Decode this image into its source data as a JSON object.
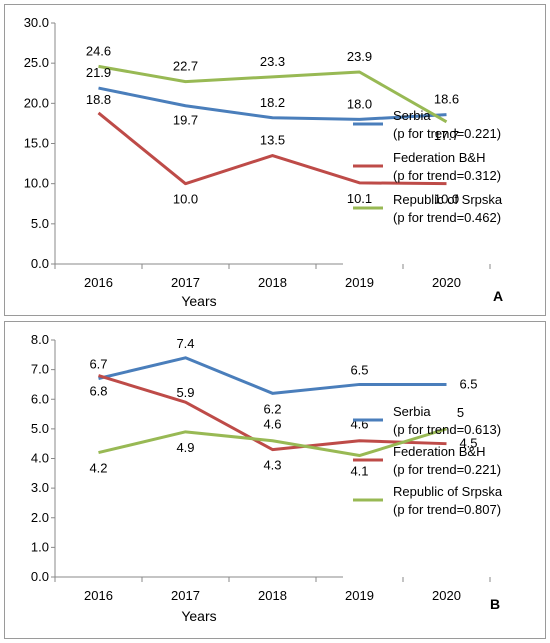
{
  "chart_data": [
    {
      "type": "line",
      "panel_label": "A",
      "xlabel": "Years",
      "categories": [
        "2016",
        "2017",
        "2018",
        "2019",
        "2020"
      ],
      "ylim": [
        0,
        30
      ],
      "yticks": [
        "0.0",
        "5.0",
        "10.0",
        "15.0",
        "20.0",
        "25.0",
        "30.0"
      ],
      "series": [
        {
          "name": "Serbia",
          "trend": "(p for trend=0.221)",
          "color": "#4a7ebb",
          "values": [
            21.9,
            19.7,
            18.2,
            18.0,
            18.6
          ],
          "labels": [
            "21.9",
            "19.7",
            "18.2",
            "18.0",
            "18.6"
          ]
        },
        {
          "name": "Federation B&H",
          "trend": "(p for trend=0.312)",
          "color": "#be4b48",
          "values": [
            18.8,
            10.0,
            13.5,
            10.1,
            10.0
          ],
          "labels": [
            "18.8",
            "10.0",
            "13.5",
            "10.1",
            "10.0"
          ]
        },
        {
          "name": "Republic of Srpska",
          "trend": "(p for trend=0.462)",
          "color": "#98b954",
          "values": [
            24.6,
            22.7,
            23.3,
            23.9,
            17.7
          ],
          "labels": [
            "24.6",
            "22.7",
            "23.3",
            "23.9",
            "17.7"
          ]
        }
      ],
      "legend_position": "right"
    },
    {
      "type": "line",
      "panel_label": "B",
      "xlabel": "Years",
      "categories": [
        "2016",
        "2017",
        "2018",
        "2019",
        "2020"
      ],
      "ylim": [
        0,
        8
      ],
      "yticks": [
        "0.0",
        "1.0",
        "2.0",
        "3.0",
        "4.0",
        "5.0",
        "6.0",
        "7.0",
        "8.0"
      ],
      "series": [
        {
          "name": "Serbia",
          "trend": "(p for trend=0.613)",
          "color": "#4a7ebb",
          "values": [
            6.7,
            7.4,
            6.2,
            6.5,
            6.5
          ],
          "labels": [
            "6.7",
            "7.4",
            "6.2",
            "6.5",
            "6.5"
          ]
        },
        {
          "name": "Federation B&H",
          "trend": "(p for trend=0.221)",
          "color": "#be4b48",
          "values": [
            6.8,
            5.9,
            4.3,
            4.6,
            4.5
          ],
          "labels": [
            "6.8",
            "5.9",
            "4.3",
            "4.6",
            "4.5"
          ]
        },
        {
          "name": "Republic of Srpska",
          "trend": "(p for trend=0.807)",
          "color": "#98b954",
          "values": [
            4.2,
            4.9,
            4.6,
            4.1,
            5.0
          ],
          "labels": [
            "4.2",
            "4.9",
            "4.6",
            "4.1",
            "5"
          ]
        }
      ],
      "legend_position": "right"
    }
  ]
}
